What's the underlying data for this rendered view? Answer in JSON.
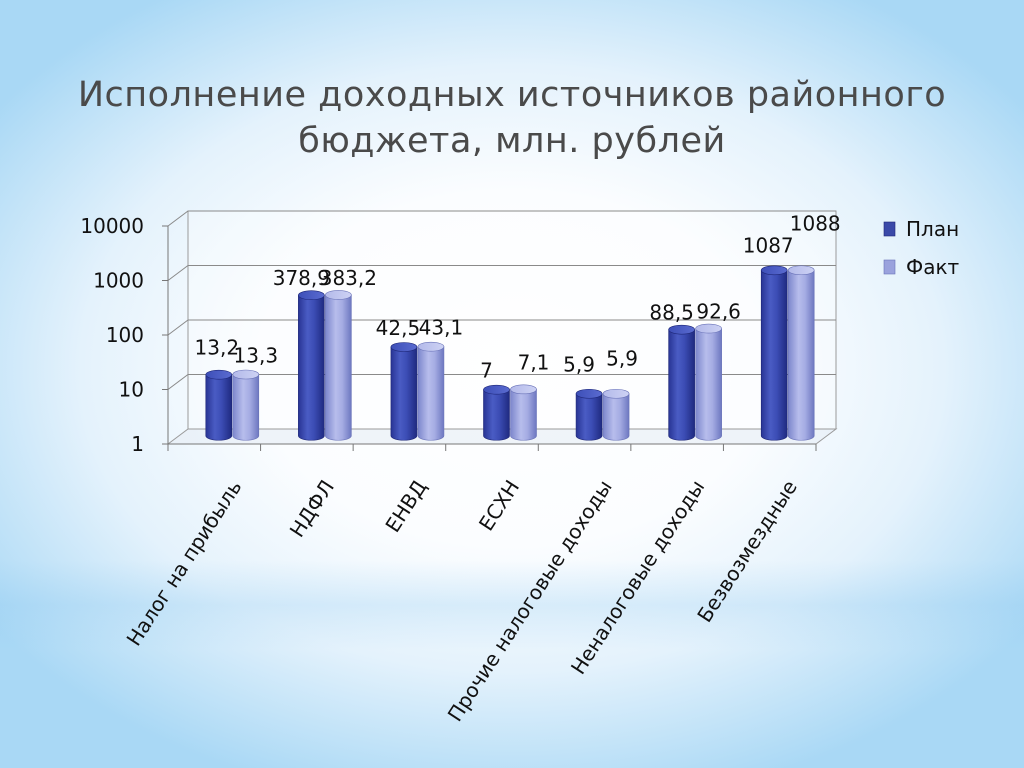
{
  "title": {
    "line1": "Исполнение доходных источников районного",
    "line2": "бюджета, млн. рублей"
  },
  "colors": {
    "plan": "#3a49a8",
    "fact": "#9aa2dd"
  },
  "chart_data": {
    "type": "bar",
    "y_scale": "log",
    "ylim": [
      1,
      10000
    ],
    "y_ticks": [
      "1",
      "10",
      "100",
      "1000",
      "10000"
    ],
    "grid": true,
    "legend_position": "right",
    "categories": [
      "Налог на прибыль",
      "НДФЛ",
      "ЕНВД",
      "ЕСХН",
      "Прочие налоговые доходы",
      "Неналоговые доходы",
      "Безвозмездные"
    ],
    "series": [
      {
        "name": "План",
        "values": [
          13.2,
          378.9,
          42.5,
          7,
          5.9,
          88.5,
          1087
        ],
        "labels": [
          "13,2",
          "378,9",
          "42,5",
          "7",
          "5,9",
          "88,5",
          "1087"
        ]
      },
      {
        "name": "Факт",
        "values": [
          13.3,
          383.2,
          43.1,
          7.1,
          5.9,
          92.6,
          1088
        ],
        "labels": [
          "13,3",
          "383,2",
          "43,1",
          "7,1",
          "5,9",
          "92,6",
          "1088"
        ]
      }
    ]
  }
}
